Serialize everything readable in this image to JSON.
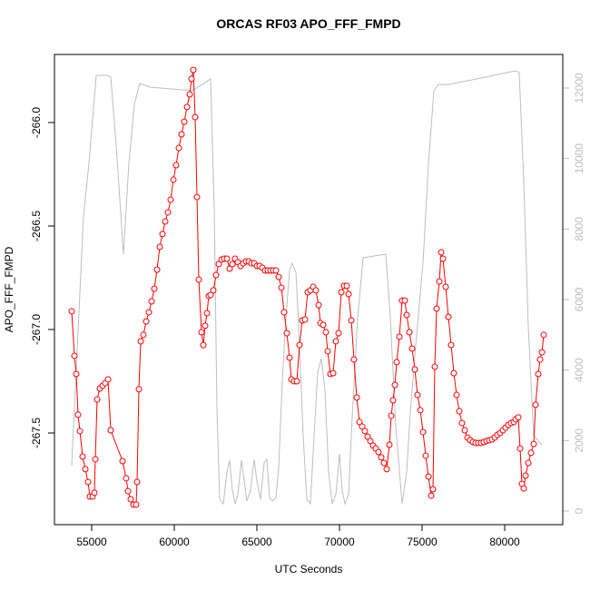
{
  "chart_data": {
    "type": "line",
    "title": "ORCAS RF03 APO_FFF_FMPD",
    "xlabel": "UTC Seconds",
    "ylabel": "APO_FFF_FMPD",
    "xlim": [
      52747,
      83516
    ],
    "ylim": [
      -267.943,
      -265.671
    ],
    "y2lim": [
      -386,
      12953
    ],
    "xticks": [
      55000,
      60000,
      65000,
      70000,
      75000,
      80000
    ],
    "yticks": [
      {
        "value": -266,
        "label": "-266.0"
      },
      -266.5,
      {
        "value": -267,
        "label": "-267.0"
      },
      -267.5
    ],
    "y2ticks": [
      0,
      2000,
      4000,
      6000,
      8000,
      10000,
      12000
    ],
    "y2color": "#bebebe",
    "series": [
      {
        "color": "#bebebe",
        "axis": "y2",
        "markers": false,
        "x": [
          53791,
          54505,
          54835,
          55275,
          55934,
          56154,
          56484,
          56923,
          57253,
          57582,
          57912,
          58516,
          61099,
          62198,
          62418,
          62582,
          62747,
          62967,
          63187,
          63352,
          63516,
          63681,
          63846,
          64066,
          64231,
          64396,
          64615,
          64835,
          65000,
          65220,
          65440,
          65604,
          65769,
          65934,
          66154,
          66319,
          66538,
          66758,
          66978,
          67143,
          67363,
          67582,
          67802,
          68022,
          68242,
          68462,
          68681,
          68901,
          69121,
          69341,
          69560,
          69780,
          70000,
          70165,
          70330,
          70549,
          70769,
          71099,
          71429,
          72802,
          73077,
          73407,
          73791,
          74066,
          74286,
          74615,
          75055,
          75385,
          75714,
          75989,
          76648,
          78022,
          80659,
          80879,
          81154,
          81429,
          81758,
          82253
        ],
        "values": [
          1288,
          8370,
          9863,
          12362,
          12362,
          12310,
          10379,
          7288,
          9863,
          11537,
          12130,
          12027,
          11924,
          12259,
          8576,
          2910,
          335,
          206,
          1107,
          1442,
          592,
          206,
          464,
          1442,
          850,
          283,
          592,
          1468,
          850,
          335,
          1365,
          1468,
          386,
          283,
          386,
          1236,
          3683,
          5485,
          6825,
          7031,
          6773,
          4713,
          2137,
          335,
          206,
          2137,
          3940,
          4327,
          3425,
          1107,
          206,
          464,
          1622,
          592,
          206,
          464,
          2653,
          5485,
          7185,
          7288,
          5485,
          2395,
          206,
          1107,
          2781,
          4713,
          7031,
          9863,
          11924,
          12104,
          12104,
          12233,
          12490,
          12439,
          9348,
          5228,
          2137,
          1880
        ]
      },
      {
        "color": "#ff0000",
        "axis": "y",
        "markers": true,
        "x": [
          53791,
          53956,
          54066,
          54176,
          54286,
          54451,
          54615,
          54780,
          54890,
          55055,
          55165,
          55220,
          55330,
          55494,
          55659,
          55824,
          55989,
          56154,
          56868,
          57088,
          57198,
          57363,
          57527,
          57692,
          57747,
          57857,
          57967,
          58132,
          58297,
          58462,
          58626,
          58791,
          58956,
          59121,
          59286,
          59451,
          59615,
          59780,
          59945,
          60110,
          60275,
          60440,
          60604,
          60769,
          60934,
          61044,
          61154,
          61264,
          61374,
          61484,
          61648,
          61758,
          61868,
          61978,
          62088,
          62198,
          62363,
          62527,
          62692,
          62857,
          63022,
          63187,
          63352,
          63516,
          63681,
          63846,
          64011,
          64176,
          64341,
          64505,
          64670,
          64835,
          65000,
          65165,
          65330,
          65494,
          65659,
          65824,
          65989,
          66154,
          66319,
          66484,
          66648,
          66813,
          66978,
          67088,
          67253,
          67418,
          67582,
          67747,
          67912,
          68077,
          68242,
          68407,
          68571,
          68736,
          68846,
          69011,
          69176,
          69286,
          69451,
          69615,
          69780,
          69945,
          70110,
          70275,
          70440,
          70549,
          70714,
          70879,
          71044,
          71209,
          71374,
          71538,
          71703,
          71868,
          72033,
          72198,
          72363,
          72527,
          72692,
          72857,
          73022,
          73132,
          73242,
          73352,
          73462,
          73626,
          73791,
          73956,
          74066,
          74231,
          74396,
          74560,
          74725,
          74890,
          75055,
          75220,
          75385,
          75549,
          75659,
          75769,
          75879,
          76044,
          76154,
          76264,
          76429,
          76593,
          76758,
          76923,
          77088,
          77253,
          77418,
          77582,
          77747,
          77912,
          78077,
          78242,
          78407,
          78571,
          78736,
          78901,
          79066,
          79231,
          79396,
          79560,
          79725,
          79890,
          80055,
          80220,
          80385,
          80549,
          80659,
          80824,
          80934,
          81044,
          81154,
          81264,
          81429,
          81593,
          81758,
          81868,
          82033,
          82143,
          82253,
          82363
        ],
        "values": [
          -266.912,
          -267.127,
          -267.215,
          -267.412,
          -267.491,
          -267.614,
          -267.675,
          -267.737,
          -267.807,
          -267.807,
          -267.789,
          -267.627,
          -267.338,
          -267.285,
          -267.272,
          -267.259,
          -267.241,
          -267.487,
          -267.636,
          -267.719,
          -267.781,
          -267.82,
          -267.846,
          -267.846,
          -267.737,
          -267.289,
          -267.057,
          -267.026,
          -266.961,
          -266.917,
          -266.864,
          -266.803,
          -266.711,
          -266.601,
          -266.539,
          -266.478,
          -266.434,
          -266.373,
          -266.276,
          -266.206,
          -266.123,
          -266.057,
          -265.996,
          -265.925,
          -265.864,
          -265.789,
          -265.746,
          -265.974,
          -266.36,
          -266.759,
          -267.013,
          -267.075,
          -266.982,
          -266.921,
          -266.838,
          -266.833,
          -266.811,
          -266.737,
          -266.684,
          -266.662,
          -266.658,
          -266.658,
          -266.706,
          -266.684,
          -266.658,
          -266.675,
          -266.693,
          -266.68,
          -266.671,
          -266.671,
          -266.68,
          -266.68,
          -266.693,
          -266.693,
          -266.702,
          -266.715,
          -266.715,
          -266.715,
          -266.715,
          -266.715,
          -266.746,
          -266.798,
          -266.917,
          -267.018,
          -267.136,
          -267.241,
          -267.25,
          -267.25,
          -267.075,
          -266.956,
          -266.952,
          -266.82,
          -266.811,
          -266.794,
          -266.811,
          -266.882,
          -266.969,
          -266.978,
          -267.013,
          -267.105,
          -267.215,
          -267.211,
          -267.057,
          -267.018,
          -266.82,
          -266.789,
          -266.789,
          -266.829,
          -266.956,
          -267.145,
          -267.329,
          -267.447,
          -267.469,
          -267.491,
          -267.518,
          -267.539,
          -267.561,
          -267.575,
          -267.592,
          -267.618,
          -267.645,
          -267.675,
          -267.557,
          -267.417,
          -267.342,
          -267.268,
          -267.158,
          -267.035,
          -266.86,
          -266.86,
          -266.93,
          -267.013,
          -267.092,
          -267.193,
          -267.316,
          -267.39,
          -267.496,
          -267.61,
          -267.711,
          -267.803,
          -267.772,
          -267.18,
          -266.899,
          -266.768,
          -266.627,
          -266.658,
          -266.794,
          -266.939,
          -267.075,
          -267.211,
          -267.316,
          -267.395,
          -267.452,
          -267.487,
          -267.522,
          -267.535,
          -267.544,
          -267.548,
          -267.548,
          -267.548,
          -267.544,
          -267.539,
          -267.535,
          -267.531,
          -267.522,
          -267.509,
          -267.5,
          -267.487,
          -267.474,
          -267.461,
          -267.452,
          -267.447,
          -267.434,
          -267.425,
          -267.575,
          -267.746,
          -267.768,
          -267.706,
          -267.645,
          -267.596,
          -267.553,
          -267.364,
          -267.215,
          -267.145,
          -267.11,
          -267.026
        ]
      }
    ]
  }
}
